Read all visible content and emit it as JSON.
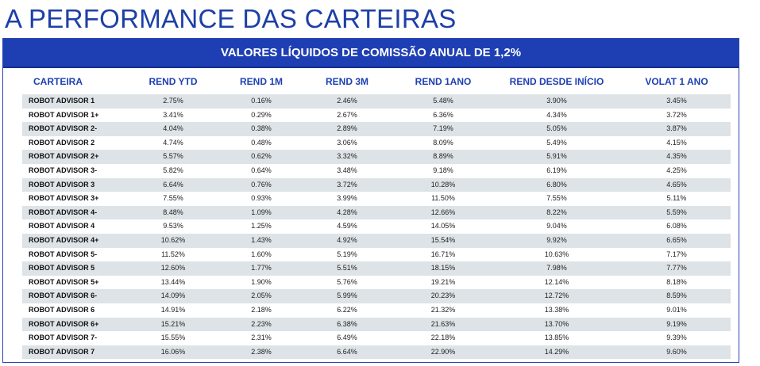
{
  "page": {
    "title": "A PERFORMANCE DAS CARTEIRAS",
    "banner": "VALORES LÍQUIDOS DE COMISSÃO ANUAL DE 1,2%"
  },
  "table": {
    "columns": [
      "CARTEIRA",
      "REND YTD",
      "REND 1M",
      "REND 3M",
      "REND 1ANO",
      "REND DESDE INÍCIO",
      "VOLAT 1 ANO"
    ],
    "rows": [
      [
        "ROBOT ADVISOR 1",
        "2.75%",
        "0.16%",
        "2.46%",
        "5.48%",
        "3.90%",
        "3.45%"
      ],
      [
        "ROBOT ADVISOR 1+",
        "3.41%",
        "0.29%",
        "2.67%",
        "6.36%",
        "4.34%",
        "3.72%"
      ],
      [
        "ROBOT ADVISOR 2-",
        "4.04%",
        "0.38%",
        "2.89%",
        "7.19%",
        "5.05%",
        "3.87%"
      ],
      [
        "ROBOT ADVISOR 2",
        "4.74%",
        "0.48%",
        "3.06%",
        "8.09%",
        "5.49%",
        "4.15%"
      ],
      [
        "ROBOT ADVISOR 2+",
        "5.57%",
        "0.62%",
        "3.32%",
        "8.89%",
        "5.91%",
        "4.35%"
      ],
      [
        "ROBOT ADVISOR 3-",
        "5.82%",
        "0.64%",
        "3.48%",
        "9.18%",
        "6.19%",
        "4.25%"
      ],
      [
        "ROBOT ADVISOR 3",
        "6.64%",
        "0.76%",
        "3.72%",
        "10.28%",
        "6.80%",
        "4.65%"
      ],
      [
        "ROBOT ADVISOR 3+",
        "7.55%",
        "0.93%",
        "3.99%",
        "11.50%",
        "7.55%",
        "5.11%"
      ],
      [
        "ROBOT ADVISOR 4-",
        "8.48%",
        "1.09%",
        "4.28%",
        "12.66%",
        "8.22%",
        "5.59%"
      ],
      [
        "ROBOT ADVISOR 4",
        "9.53%",
        "1.25%",
        "4.59%",
        "14.05%",
        "9.04%",
        "6.08%"
      ],
      [
        "ROBOT ADVISOR 4+",
        "10.62%",
        "1.43%",
        "4.92%",
        "15.54%",
        "9.92%",
        "6.65%"
      ],
      [
        "ROBOT ADVISOR 5-",
        "11.52%",
        "1.60%",
        "5.19%",
        "16.71%",
        "10.63%",
        "7.17%"
      ],
      [
        "ROBOT ADVISOR 5",
        "12.60%",
        "1.77%",
        "5.51%",
        "18.15%",
        "7.98%",
        "7.77%"
      ],
      [
        "ROBOT ADVISOR 5+",
        "13.44%",
        "1.90%",
        "5.76%",
        "19.21%",
        "12.14%",
        "8.18%"
      ],
      [
        "ROBOT ADVISOR 6-",
        "14.09%",
        "2.05%",
        "5.99%",
        "20.23%",
        "12.72%",
        "8.59%"
      ],
      [
        "ROBOT ADVISOR 6",
        "14.91%",
        "2.18%",
        "6.22%",
        "21.32%",
        "13.38%",
        "9.01%"
      ],
      [
        "ROBOT ADVISOR 6+",
        "15.21%",
        "2.23%",
        "6.38%",
        "21.63%",
        "13.70%",
        "9.19%"
      ],
      [
        "ROBOT ADVISOR 7-",
        "15.55%",
        "2.31%",
        "6.49%",
        "22.18%",
        "13.85%",
        "9.39%"
      ],
      [
        "ROBOT ADVISOR 7",
        "16.06%",
        "2.38%",
        "6.64%",
        "22.90%",
        "14.29%",
        "9.60%"
      ]
    ]
  }
}
